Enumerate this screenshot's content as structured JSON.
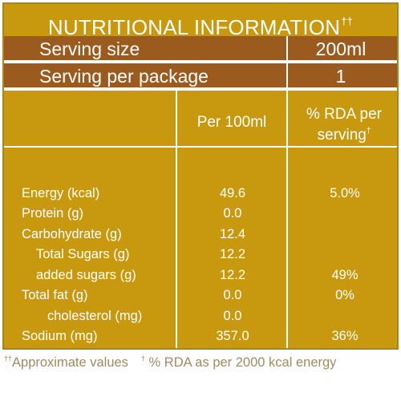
{
  "title": {
    "text": "NUTRITIONAL INFORMATION",
    "mark": "††"
  },
  "serving_size": {
    "label": "Serving size",
    "value": "200ml"
  },
  "serving_per_package": {
    "label": "Serving per package",
    "value": "1"
  },
  "columns": {
    "per100": "Per 100ml",
    "rda_line1": "% RDA per",
    "rda_line2": "serving",
    "rda_mark": "†"
  },
  "rows": [
    {
      "name": "Energy (kcal)",
      "per100": "49.6",
      "rda": "5.0%"
    },
    {
      "name": "Protein (g)",
      "per100": "0.0",
      "rda": ""
    },
    {
      "name": "Carbohydrate (g)",
      "per100": "12.4",
      "rda": ""
    },
    {
      "name": "Total Sugars (g)",
      "per100": "12.2",
      "rda": ""
    },
    {
      "name": "added sugars (g)",
      "per100": "12.2",
      "rda": "49%"
    },
    {
      "name": "Total fat (g)",
      "per100": "0.0",
      "rda": "0%"
    },
    {
      "name": "cholesterol (mg)",
      "per100": "0.0",
      "rda": ""
    },
    {
      "name": "Sodium (mg)",
      "per100": "357.0",
      "rda": "36%"
    }
  ],
  "footer": {
    "note1_mark": "††",
    "note1": "Approximate values",
    "note2_mark": "†",
    "note2": " % RDA as per 2000 kcal energy"
  },
  "colors": {
    "gold": "#c8980f",
    "brown": "#9c5b1e",
    "text": "#ffffff",
    "footer_text": "#a08a62"
  }
}
